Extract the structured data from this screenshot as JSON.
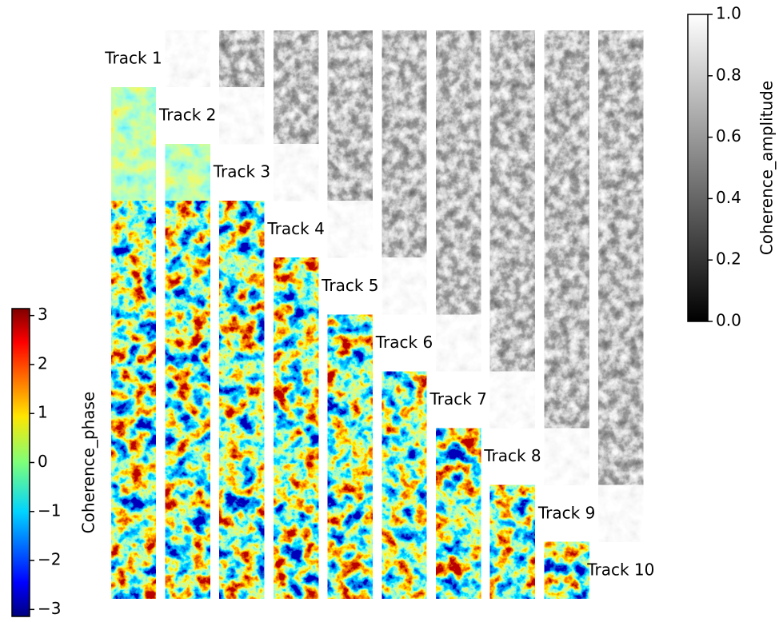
{
  "chart_data": {
    "type": "coherence_matrix",
    "tracks": [
      "Track 1",
      "Track 2",
      "Track 3",
      "Track 4",
      "Track 5",
      "Track 6",
      "Track 7",
      "Track 8",
      "Track 9",
      "Track 10"
    ],
    "colorbars": [
      {
        "label": "Coherence_phase",
        "colormap": "jet",
        "lim": [
          -3.14159,
          3.14159
        ],
        "ticks": [
          {
            "value": -3,
            "label": "−3"
          },
          {
            "value": -2,
            "label": "−2"
          },
          {
            "value": -1,
            "label": "−1"
          },
          0,
          1,
          2,
          3
        ]
      },
      {
        "label": "Coherence_amplitude",
        "colormap": "gray",
        "lim": [
          0,
          1
        ],
        "ticks": [
          {
            "value": 0,
            "label": "0.0"
          },
          0.2,
          0.4,
          0.6,
          0.8,
          {
            "value": 1,
            "label": "1.0"
          }
        ]
      }
    ]
  }
}
